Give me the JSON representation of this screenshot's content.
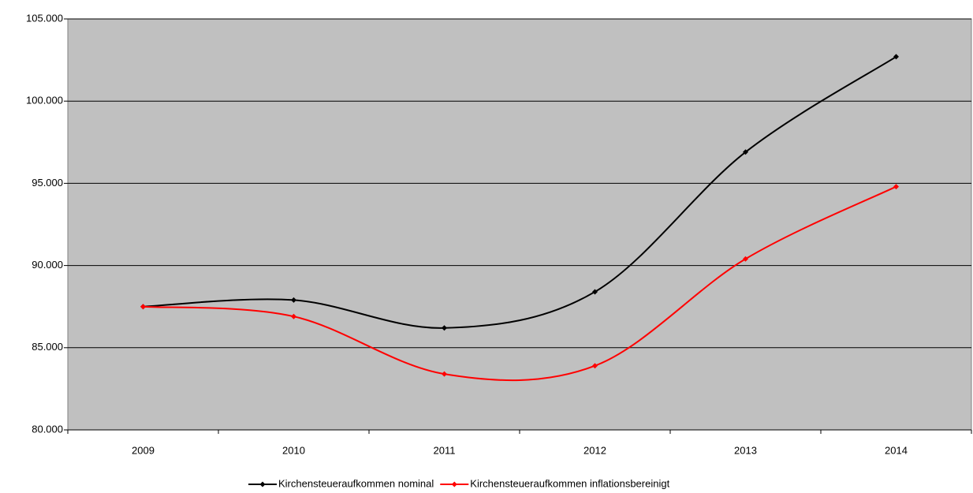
{
  "chart_data": {
    "type": "line",
    "smooth": true,
    "grid": true,
    "plot_background": "#c0c0c0",
    "categories": [
      "2009",
      "2010",
      "2011",
      "2012",
      "2013",
      "2014"
    ],
    "series": [
      {
        "name": "Kirchensteueraufkommen nominal",
        "color": "#000000",
        "values": [
          87500,
          87900,
          86200,
          88400,
          96900,
          102700
        ]
      },
      {
        "name": "Kirchensteueraufkommen inflationsbereinigt",
        "color": "#ff0000",
        "values": [
          87500,
          86900,
          83400,
          83900,
          90400,
          94800
        ]
      }
    ],
    "ylim": [
      80000,
      105000
    ],
    "yticks": [
      {
        "value": 80000,
        "label": "80.000"
      },
      {
        "value": 85000,
        "label": "85.000"
      },
      {
        "value": 90000,
        "label": "90.000"
      },
      {
        "value": 95000,
        "label": "95.000"
      },
      {
        "value": 100000,
        "label": "100.000"
      },
      {
        "value": 105000,
        "label": "105.000"
      }
    ],
    "legend": "bottom"
  }
}
